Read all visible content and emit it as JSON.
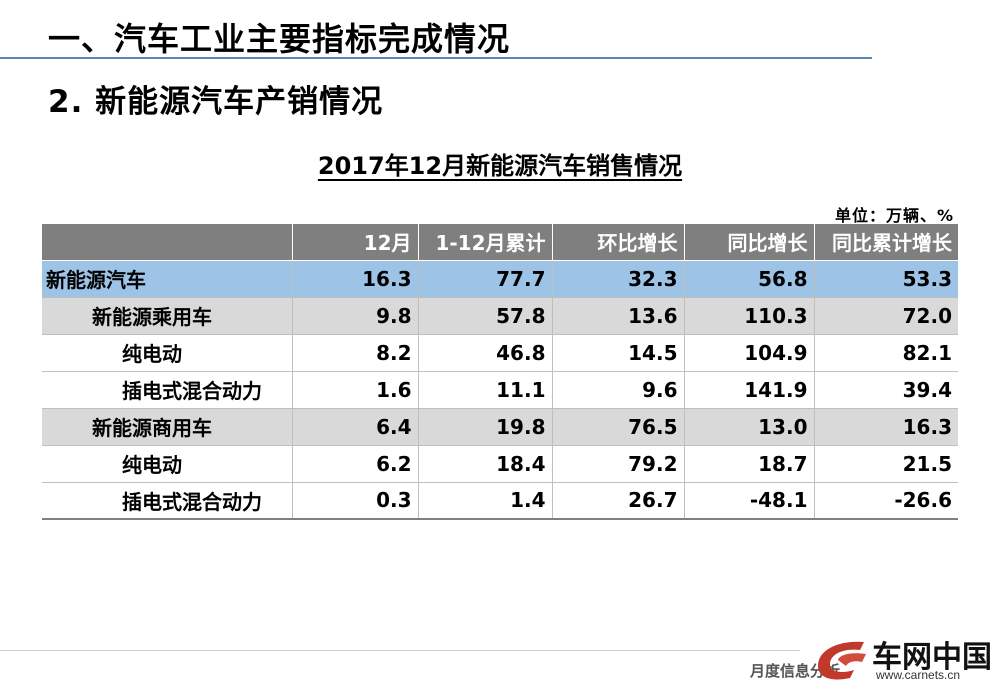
{
  "heading1": "一、汽车工业主要指标完成情况",
  "heading2": "2. 新能源汽车产销情况",
  "table_title": "2017年12月新能源汽车销售情况",
  "unit": "单位：万辆、%",
  "columns": [
    "",
    "12月",
    "1-12月累计",
    "环比增长",
    "同比增长",
    "同比累计增长"
  ],
  "rows": [
    {
      "label": "新能源汽车",
      "level": 0,
      "values": [
        "16.3",
        "77.7",
        "32.3",
        "56.8",
        "53.3"
      ]
    },
    {
      "label": "新能源乘用车",
      "level": 1,
      "values": [
        "9.8",
        "57.8",
        "13.6",
        "110.3",
        "72.0"
      ]
    },
    {
      "label": "纯电动",
      "level": 2,
      "values": [
        "8.2",
        "46.8",
        "14.5",
        "104.9",
        "82.1"
      ]
    },
    {
      "label": "插电式混合动力",
      "level": 2,
      "values": [
        "1.6",
        "11.1",
        "9.6",
        "141.9",
        "39.4"
      ]
    },
    {
      "label": "新能源商用车",
      "level": 1,
      "values": [
        "6.4",
        "19.8",
        "76.5",
        "13.0",
        "16.3"
      ]
    },
    {
      "label": "纯电动",
      "level": 2,
      "values": [
        "6.2",
        "18.4",
        "79.2",
        "18.7",
        "21.5"
      ]
    },
    {
      "label": "插电式混合动力",
      "level": 2,
      "values": [
        "0.3",
        "1.4",
        "26.7",
        "-48.1",
        "-26.6"
      ]
    }
  ],
  "footer": {
    "text": "月度信息分析",
    "brand": "车网中国",
    "site": "www.carnets.cn",
    "logo_icon": "carnets-logo-icon",
    "accent_color": "#c0392b"
  }
}
